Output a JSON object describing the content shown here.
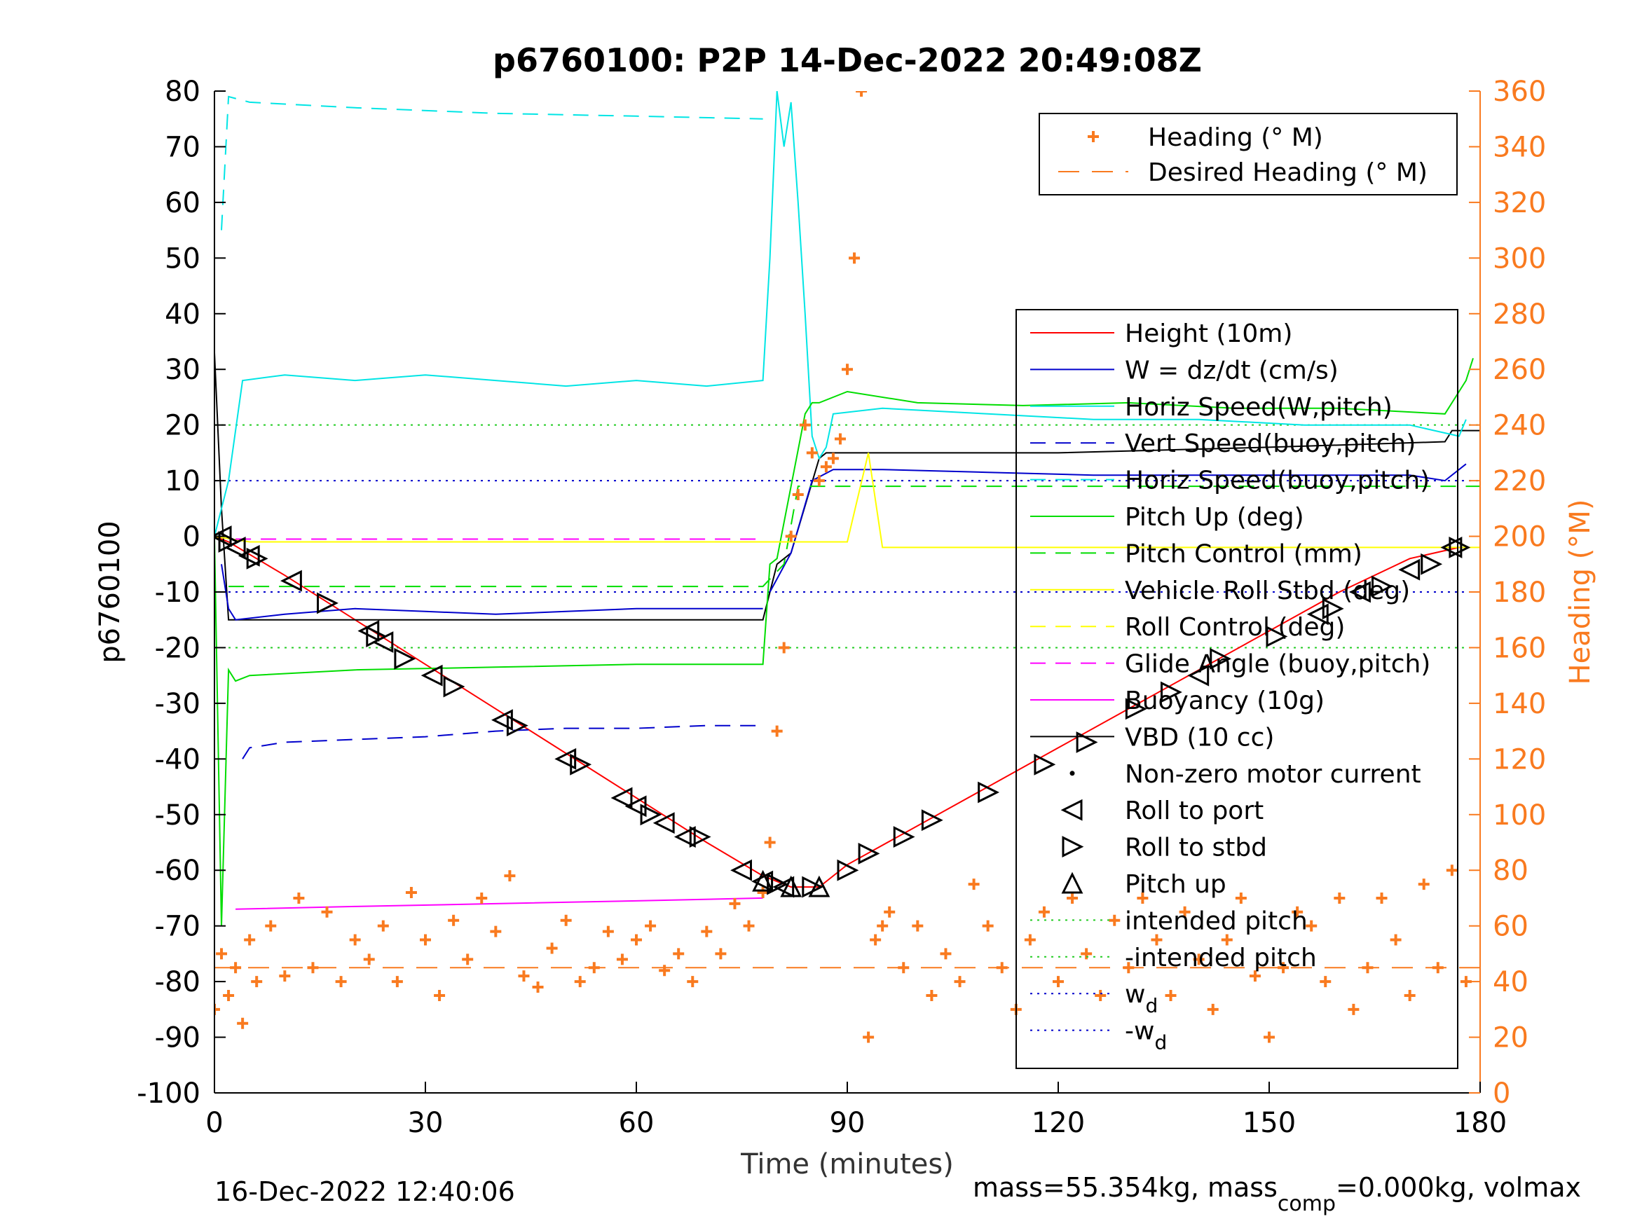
{
  "chart_data": {
    "type": "line",
    "title": "p6760100: P2P 14-Dec-2022 20:49:08Z",
    "xlabel": "Time (minutes)",
    "ylabel_left": "p6760100",
    "ylabel_right": "Heading (°M)",
    "x_ticks": [
      0,
      30,
      60,
      90,
      120,
      150,
      180
    ],
    "y_left_ticks": [
      80,
      70,
      60,
      50,
      40,
      30,
      20,
      10,
      0,
      -10,
      -20,
      -30,
      -40,
      -50,
      -60,
      -70,
      -80,
      -90,
      -100
    ],
    "y_right_ticks": [
      360,
      340,
      320,
      300,
      280,
      260,
      240,
      220,
      200,
      180,
      160,
      140,
      120,
      100,
      80,
      60,
      40,
      20,
      0
    ],
    "xlim": [
      0,
      180
    ],
    "ylim_left": [
      -100,
      80
    ],
    "ylim_right": [
      0,
      360
    ],
    "footer_left": "16-Dec-2022 12:40:06",
    "footer_right_prefix": "mass=55.354kg, mass",
    "footer_right_sub": "comp",
    "footer_right_suffix": "=0.000kg, volmax",
    "colors": {
      "heading": "#f97a1f",
      "height": "#ff0000",
      "w": "#0000cc",
      "horiz": "#00e5e5",
      "pitch": "#00dd00",
      "roll": "#ffff00",
      "buoy": "#ff00ff",
      "vbd": "#000000",
      "axis_right": "#f97a1f"
    },
    "legend_top": [
      {
        "label": "Heading (° M)",
        "style": "plus",
        "color": "#f97a1f"
      },
      {
        "label": "Desired Heading (° M)",
        "style": "dash",
        "color": "#f97a1f"
      }
    ],
    "legend_main": [
      {
        "label": "Height (10m)",
        "style": "solid",
        "color": "#ff0000"
      },
      {
        "label": "W = dz/dt (cm/s)",
        "style": "solid",
        "color": "#0000cc"
      },
      {
        "label": "Horiz Speed(W,pitch)",
        "style": "solid",
        "color": "#00e5e5"
      },
      {
        "label": "Vert Speed(buoy,pitch)",
        "style": "dash",
        "color": "#0000cc"
      },
      {
        "label": "Horiz Speed(buoy,pitch)",
        "style": "dash",
        "color": "#00e5e5"
      },
      {
        "label": "Pitch Up (deg)",
        "style": "solid",
        "color": "#00dd00"
      },
      {
        "label": "Pitch Control (mm)",
        "style": "dash",
        "color": "#00dd00"
      },
      {
        "label": "Vehicle Roll Stbd (deg)",
        "style": "solid",
        "color": "#ffff00"
      },
      {
        "label": "Roll Control (deg)",
        "style": "dash",
        "color": "#ffff00"
      },
      {
        "label": "Glide Angle (buoy,pitch)",
        "style": "dash",
        "color": "#ff00ff"
      },
      {
        "label": "Buoyancy (10g)",
        "style": "solid",
        "color": "#ff00ff"
      },
      {
        "label": "VBD (10 cc)",
        "style": "solid",
        "color": "#000000"
      },
      {
        "label": "Non-zero motor current",
        "style": "dot",
        "color": "#000000"
      },
      {
        "label": "Roll to port",
        "style": "tri-left",
        "color": "#000000"
      },
      {
        "label": "Roll to stbd",
        "style": "tri-right",
        "color": "#000000"
      },
      {
        "label": "Pitch up",
        "style": "tri-up",
        "color": "#000000"
      },
      {
        "label": "intended pitch",
        "style": "dotted",
        "color": "#22cc22"
      },
      {
        "label": "-intended pitch",
        "style": "dotted",
        "color": "#22cc22"
      },
      {
        "label": "w",
        "sub": "d",
        "style": "dotted",
        "color": "#0000cc"
      },
      {
        "label": "-w",
        "sub": "d",
        "style": "dotted",
        "color": "#0000cc"
      }
    ],
    "reference_lines": [
      {
        "y": 20,
        "color": "#22cc22"
      },
      {
        "y": -20,
        "color": "#22cc22"
      },
      {
        "y": 10,
        "color": "#0000cc"
      },
      {
        "y": -10,
        "color": "#0000cc"
      }
    ],
    "series": [
      {
        "name": "Height (10m)",
        "color": "#ff0000",
        "x": [
          0,
          2,
          10,
          20,
          30,
          40,
          50,
          60,
          70,
          78,
          82,
          86,
          90,
          100,
          110,
          120,
          130,
          140,
          150,
          160,
          170,
          177
        ],
        "y": [
          0,
          -1,
          -7,
          -15,
          -23,
          -31,
          -39,
          -47,
          -55,
          -61,
          -63,
          -63,
          -59,
          -52,
          -45,
          -38,
          -31,
          -24,
          -17,
          -10,
          -4,
          -2
        ]
      },
      {
        "name": "VBD (10 cc)",
        "color": "#000000",
        "x": [
          0,
          1,
          2,
          30,
          60,
          78,
          80,
          82,
          86,
          87,
          120,
          150,
          175,
          176,
          180
        ],
        "y": [
          33,
          5,
          -15,
          -15,
          -15,
          -15,
          -5,
          -3,
          14,
          15,
          15,
          16,
          17,
          19,
          19
        ]
      },
      {
        "name": "W = dz/dt (cm/s)",
        "color": "#0000cc",
        "x": [
          1,
          2,
          3,
          10,
          20,
          30,
          40,
          50,
          60,
          70,
          78
        ],
        "y": [
          -5,
          -13,
          -15,
          -14,
          -13,
          -13.5,
          -14,
          -13.5,
          -13,
          -13,
          -13
        ]
      },
      {
        "name": "W = dz/dt (cm/s) climb",
        "color": "#0000cc",
        "x": [
          79,
          82,
          85,
          88,
          95,
          110,
          125,
          140,
          155,
          170,
          175,
          178
        ],
        "y": [
          -10,
          -3,
          10,
          12,
          12,
          11.5,
          11,
          11,
          11,
          11,
          10,
          13
        ]
      },
      {
        "name": "Horiz Speed(W,pitch)",
        "color": "#00e5e5",
        "x": [
          0,
          2,
          4,
          10,
          20,
          30,
          40,
          50,
          60,
          70,
          78,
          79,
          80,
          81,
          82,
          83,
          84,
          85,
          86,
          87,
          88,
          95,
          110,
          125,
          140,
          155,
          170,
          177,
          178
        ],
        "y": [
          0,
          10,
          28,
          29,
          28,
          29,
          28,
          27,
          28,
          27,
          28,
          50,
          80,
          70,
          78,
          60,
          40,
          18,
          14,
          16,
          22,
          23,
          22,
          21,
          21,
          20,
          20,
          18,
          21
        ]
      },
      {
        "name": "Horiz Speed(buoy,pitch)",
        "color": "#00e5e5",
        "x": [
          1,
          2,
          5,
          20,
          40,
          60,
          78
        ],
        "y": [
          55,
          79,
          78,
          77,
          76,
          75.5,
          75
        ]
      },
      {
        "name": "Vert Speed(buoy,pitch)",
        "color": "#0000cc",
        "x": [
          4,
          5,
          10,
          20,
          30,
          40,
          50,
          60,
          70,
          78
        ],
        "y": [
          -40,
          -38,
          -37,
          -36.5,
          -36,
          -35,
          -34.5,
          -34.5,
          -34,
          -34
        ]
      },
      {
        "name": "Pitch Up (deg)",
        "color": "#00dd00",
        "x": [
          0,
          1,
          2,
          3,
          5,
          20,
          40,
          60,
          78,
          79,
          80,
          84,
          85,
          86,
          90,
          100,
          115,
          130,
          145,
          160,
          175,
          178,
          179
        ],
        "y": [
          0,
          -70,
          -24,
          -26,
          -25,
          -24,
          -23.5,
          -23,
          -23,
          -5,
          -4,
          22,
          24,
          24,
          26,
          24,
          23.5,
          24,
          23,
          23,
          22,
          28,
          32
        ]
      },
      {
        "name": "Pitch Control (mm)",
        "color": "#00dd00",
        "x": [
          2,
          78,
          81,
          83,
          180
        ],
        "y": [
          -9,
          -9,
          -5,
          9,
          9
        ]
      },
      {
        "name": "Vehicle Roll Stbd (deg)",
        "color": "#ffff00",
        "x": [
          0,
          5,
          20,
          40,
          60,
          78,
          80,
          85,
          90,
          93,
          95,
          120,
          150,
          180
        ],
        "y": [
          0,
          -1,
          -1,
          -1,
          -1,
          -1,
          -1,
          -1,
          -1,
          15,
          -2,
          -2,
          -2,
          -2
        ]
      },
      {
        "name": "Glide Angle (buoy,pitch)",
        "color": "#ff00ff",
        "x": [
          3,
          78
        ],
        "y": [
          -0.5,
          -0.5
        ]
      },
      {
        "name": "Buoyancy (10g)",
        "color": "#ff00ff",
        "x": [
          3,
          20,
          40,
          60,
          78
        ],
        "y": [
          -67,
          -66.5,
          -66,
          -65.5,
          -65
        ]
      }
    ],
    "heading_series": {
      "name": "Heading (° M)",
      "color": "#f97a1f",
      "desired_heading": 45,
      "x": [
        0,
        1,
        2,
        3,
        4,
        5,
        6,
        8,
        10,
        12,
        14,
        16,
        18,
        20,
        22,
        24,
        26,
        28,
        30,
        32,
        34,
        36,
        38,
        40,
        42,
        44,
        46,
        48,
        50,
        52,
        54,
        56,
        58,
        60,
        62,
        64,
        66,
        68,
        70,
        72,
        74,
        76,
        78,
        79,
        80,
        81,
        82,
        83,
        84,
        85,
        86,
        87,
        88,
        89,
        90,
        91,
        92,
        93,
        94,
        95,
        96,
        98,
        100,
        102,
        104,
        106,
        108,
        110,
        112,
        114,
        116,
        118,
        120,
        122,
        124,
        126,
        128,
        130,
        132,
        134,
        136,
        138,
        140,
        142,
        144,
        146,
        148,
        150,
        152,
        154,
        156,
        158,
        160,
        162,
        164,
        166,
        168,
        170,
        172,
        174,
        176,
        178
      ],
      "y": [
        30,
        50,
        35,
        45,
        25,
        55,
        40,
        60,
        42,
        70,
        45,
        65,
        40,
        55,
        48,
        60,
        40,
        72,
        55,
        35,
        62,
        48,
        70,
        58,
        78,
        42,
        38,
        52,
        62,
        40,
        45,
        58,
        48,
        55,
        60,
        44,
        50,
        40,
        58,
        50,
        68,
        60,
        72,
        90,
        130,
        160,
        200,
        215,
        240,
        230,
        220,
        225,
        228,
        235,
        260,
        300,
        360,
        20,
        55,
        60,
        65,
        45,
        60,
        35,
        50,
        40,
        75,
        60,
        45,
        30,
        55,
        65,
        40,
        70,
        50,
        35,
        62,
        45,
        70,
        55,
        35,
        65,
        48,
        30,
        55,
        70,
        42,
        20,
        45,
        65,
        60,
        40,
        70,
        30,
        45,
        70,
        55,
        35,
        75,
        45,
        80,
        40
      ]
    },
    "markers": {
      "roll_port": [
        [
          1,
          0
        ],
        [
          3,
          -2
        ],
        [
          5,
          -3.5
        ],
        [
          11,
          -8
        ],
        [
          22,
          -17
        ],
        [
          24,
          -19
        ],
        [
          31,
          -25
        ],
        [
          41,
          -33
        ],
        [
          50,
          -40
        ],
        [
          58,
          -47
        ],
        [
          60,
          -48.5
        ],
        [
          64,
          -51.5
        ],
        [
          67,
          -54
        ],
        [
          75,
          -60
        ],
        [
          78,
          -62
        ],
        [
          81,
          -63
        ],
        [
          140,
          -25
        ],
        [
          157,
          -14
        ],
        [
          163,
          -10
        ],
        [
          170,
          -6
        ],
        [
          176,
          -2
        ]
      ],
      "roll_stbd": [
        [
          2,
          -1
        ],
        [
          6,
          -4
        ],
        [
          16,
          -12
        ],
        [
          23,
          -18
        ],
        [
          27,
          -22
        ],
        [
          34,
          -27
        ],
        [
          43,
          -34
        ],
        [
          52,
          -41
        ],
        [
          62,
          -50
        ],
        [
          69,
          -54
        ],
        [
          80,
          -62.5
        ],
        [
          85,
          -63
        ],
        [
          90,
          -60
        ],
        [
          93,
          -57
        ],
        [
          98,
          -54
        ],
        [
          102,
          -51
        ],
        [
          110,
          -46
        ],
        [
          118,
          -41
        ],
        [
          124,
          -37
        ],
        [
          131,
          -31
        ],
        [
          136,
          -28
        ],
        [
          143,
          -22
        ],
        [
          151,
          -18
        ],
        [
          159,
          -13
        ],
        [
          166,
          -9
        ],
        [
          173,
          -5
        ],
        [
          177,
          -2
        ]
      ],
      "pitch_up": [
        [
          78,
          -62
        ],
        [
          82,
          -63
        ],
        [
          86,
          -63
        ]
      ]
    }
  }
}
